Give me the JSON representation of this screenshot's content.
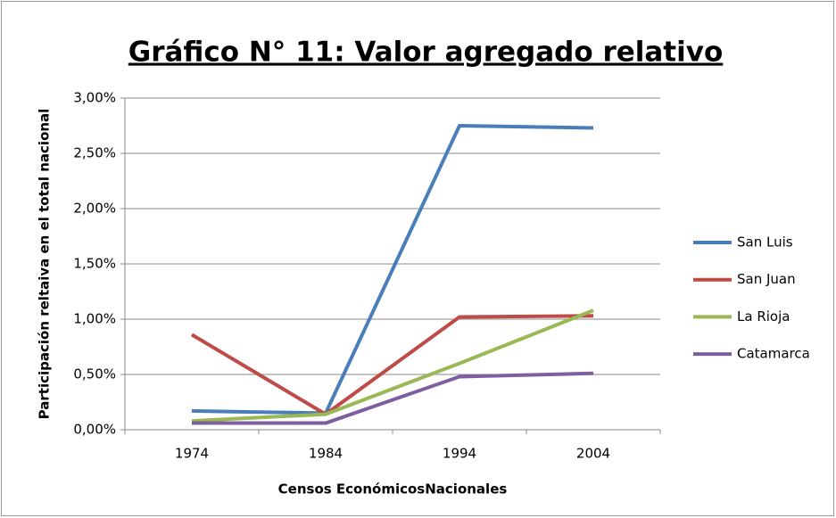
{
  "chart_data": {
    "type": "line",
    "title": "Gráfico N° 11: Valor agregado relativo",
    "x_label": "Censos EconómicosNacionales",
    "y_label": "Participación reltaiva en el total nacional",
    "categories": [
      "1974",
      "1984",
      "1994",
      "2004"
    ],
    "series": [
      {
        "name": "San Luis",
        "color": "#4a7ebb",
        "values": [
          0.17,
          0.15,
          2.75,
          2.73
        ]
      },
      {
        "name": "San Juan",
        "color": "#be4b48",
        "values": [
          0.86,
          0.14,
          1.02,
          1.03
        ]
      },
      {
        "name": "La Rioja",
        "color": "#98b954",
        "values": [
          0.08,
          0.14,
          0.6,
          1.08
        ]
      },
      {
        "name": "Catamarca",
        "color": "#7d5fa0",
        "values": [
          0.06,
          0.06,
          0.48,
          0.51
        ]
      }
    ],
    "ylim": [
      0,
      3
    ],
    "yticks": [
      {
        "value": 0,
        "label": "0,00%"
      },
      {
        "value": 0.5,
        "label": "0,50%"
      },
      {
        "value": 1,
        "label": "1,00%"
      },
      {
        "value": 1.5,
        "label": "1,50%"
      },
      {
        "value": 2,
        "label": "2,00%"
      },
      {
        "value": 2.5,
        "label": "2,50%"
      },
      {
        "value": 3,
        "label": "3,00%"
      }
    ],
    "grid": true,
    "legend": "right"
  }
}
